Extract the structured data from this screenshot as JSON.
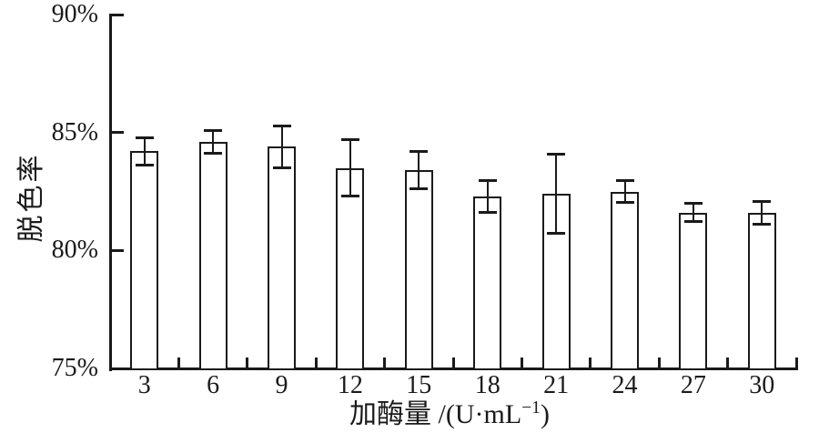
{
  "chart_data": {
    "type": "bar",
    "title": "",
    "xlabel": "加酶量 /(U·mL−1)",
    "xlabel_parts": {
      "prefix": "加酶量 /(U·mL",
      "superscript": "−1",
      "suffix": ")"
    },
    "ylabel": "脱色率",
    "categories": [
      "3",
      "6",
      "9",
      "12",
      "15",
      "18",
      "21",
      "24",
      "27",
      "30"
    ],
    "series": [
      {
        "name": "脱色率",
        "values": [
          84.2,
          84.6,
          84.4,
          83.5,
          83.4,
          82.3,
          82.4,
          82.5,
          81.6,
          81.6
        ],
        "error_bars": [
          0.6,
          0.5,
          0.9,
          1.2,
          0.8,
          0.7,
          1.7,
          0.5,
          0.4,
          0.5
        ]
      }
    ],
    "ylim": [
      75,
      90
    ],
    "y_ticks": [
      {
        "value": 75,
        "label": "75%"
      },
      {
        "value": 80,
        "label": "80%"
      },
      {
        "value": 85,
        "label": "85%"
      },
      {
        "value": 90,
        "label": "90%"
      }
    ],
    "grid": false,
    "legend": false,
    "bar_fill": "#ffffff",
    "ink_color": "#1a1a1a",
    "background_color": "#ffffff"
  }
}
